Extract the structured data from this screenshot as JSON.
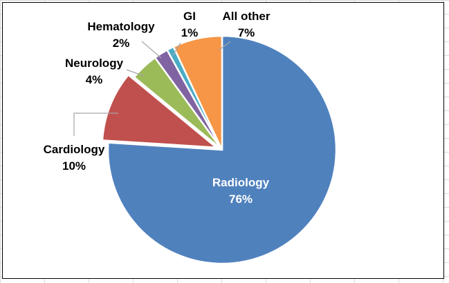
{
  "chart_data": {
    "type": "pie",
    "title": "",
    "slices": [
      {
        "label": "Radiology",
        "value": 76,
        "display": "76%",
        "color": "#4f81bd"
      },
      {
        "label": "Cardiology",
        "value": 10,
        "display": "10%",
        "color": "#c0504d"
      },
      {
        "label": "Neurology",
        "value": 4,
        "display": "4%",
        "color": "#9bbb59"
      },
      {
        "label": "Hematology",
        "value": 2,
        "display": "2%",
        "color": "#8064a2"
      },
      {
        "label": "GI",
        "value": 1,
        "display": "1%",
        "color": "#4bacc6"
      },
      {
        "label": "All other",
        "value": 7,
        "display": "7%",
        "color": "#f79646"
      }
    ],
    "legend": "none"
  }
}
